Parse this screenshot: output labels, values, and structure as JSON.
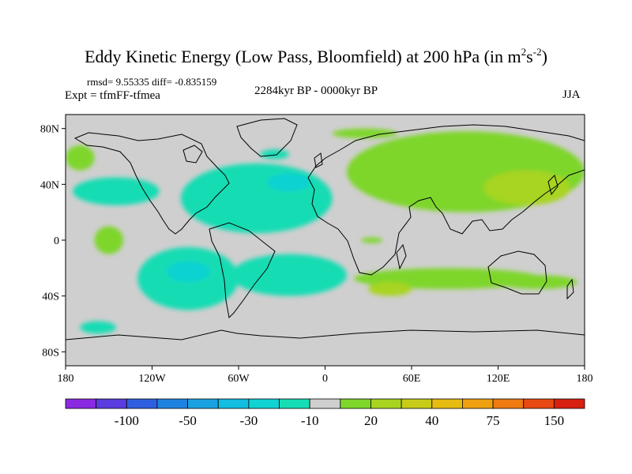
{
  "title": {
    "main": "Eddy Kinetic Energy (Low Pass, Bloomfield) at 200 hPa (in m",
    "sup1": "2",
    "mid": "s",
    "sup2": "-2",
    "end": ")"
  },
  "subtitle": {
    "stats": "rmsd= 9.55335 diff= -0.835159",
    "experiment": "Expt = tfmFF-tfmea",
    "period": "2284kyr BP - 0000kyr BP",
    "season": "JJA"
  },
  "chart_data": {
    "type": "heatmap",
    "projection": "cylindrical-equidistant",
    "variable": "Eddy Kinetic Energy difference (low pass), 200 hPa",
    "units": "m2 s-2",
    "x_range": [
      -180,
      180
    ],
    "y_range": [
      -90,
      90
    ],
    "x_ticks": [
      {
        "value": -180,
        "label": "180"
      },
      {
        "value": -120,
        "label": "120W"
      },
      {
        "value": -60,
        "label": "60W"
      },
      {
        "value": 0,
        "label": "0"
      },
      {
        "value": 60,
        "label": "60E"
      },
      {
        "value": 120,
        "label": "120E"
      },
      {
        "value": 180,
        "label": "180"
      }
    ],
    "y_ticks": [
      {
        "value": 80,
        "label": "80N"
      },
      {
        "value": 40,
        "label": "40N"
      },
      {
        "value": 0,
        "label": "0"
      },
      {
        "value": -40,
        "label": "40S"
      },
      {
        "value": -80,
        "label": "80S"
      }
    ],
    "colorbar": {
      "colors": [
        "#8a2be2",
        "#5a3ce0",
        "#2f5fe0",
        "#1e82e0",
        "#1aa2e0",
        "#11bde0",
        "#10d2d2",
        "#16dcb4",
        "#cfcfcf",
        "#7ed62a",
        "#a8d420",
        "#c8cc18",
        "#e6bc12",
        "#eea010",
        "#ee7a10",
        "#e84812",
        "#d82010"
      ],
      "labels": [
        {
          "after_bin": 2,
          "text": "-100"
        },
        {
          "after_bin": 4,
          "text": "-50"
        },
        {
          "after_bin": 6,
          "text": "-30"
        },
        {
          "after_bin": 8,
          "text": "-10"
        },
        {
          "after_bin": 10,
          "text": "20"
        },
        {
          "after_bin": 12,
          "text": "40"
        },
        {
          "after_bin": 14,
          "text": "75"
        },
        {
          "after_bin": 16,
          "text": "150"
        }
      ]
    },
    "regions": [
      {
        "name": "north-pacific-east-negative",
        "sign": "negative",
        "level": 1,
        "lon": [
          -175,
          -115
        ],
        "lat": [
          25,
          45
        ]
      },
      {
        "name": "north-atlantic-negative",
        "sign": "negative",
        "level": 1,
        "lon": [
          -100,
          5
        ],
        "lat": [
          5,
          55
        ]
      },
      {
        "name": "north-atlantic-core-negative",
        "sign": "negative",
        "level": 2,
        "lon": [
          -40,
          -10
        ],
        "lat": [
          35,
          48
        ]
      },
      {
        "name": "labrador-negative",
        "sign": "negative",
        "level": 1,
        "lon": [
          -45,
          -25
        ],
        "lat": [
          58,
          65
        ]
      },
      {
        "name": "south-pacific-negative",
        "sign": "negative",
        "level": 1,
        "lon": [
          -130,
          -60
        ],
        "lat": [
          -50,
          -5
        ]
      },
      {
        "name": "south-pacific-core-negative",
        "sign": "negative",
        "level": 2,
        "lon": [
          -110,
          -80
        ],
        "lat": [
          -30,
          -15
        ]
      },
      {
        "name": "south-atlantic-negative",
        "sign": "negative",
        "level": 1,
        "lon": [
          -65,
          15
        ],
        "lat": [
          -40,
          -10
        ]
      },
      {
        "name": "southern-ocean-negative",
        "sign": "negative",
        "level": 1,
        "lon": [
          -170,
          -145
        ],
        "lat": [
          -67,
          -58
        ]
      },
      {
        "name": "eurasia-positive",
        "sign": "positive",
        "level": 1,
        "lon": [
          15,
          180
        ],
        "lat": [
          20,
          78
        ]
      },
      {
        "name": "arctic-positive",
        "sign": "positive",
        "level": 1,
        "lon": [
          5,
          50
        ],
        "lat": [
          73,
          80
        ]
      },
      {
        "name": "east-asia-positive",
        "sign": "positive",
        "level": 2,
        "lon": [
          110,
          170
        ],
        "lat": [
          25,
          50
        ]
      },
      {
        "name": "alaska-positive",
        "sign": "positive",
        "level": 1,
        "lon": [
          -180,
          -160
        ],
        "lat": [
          50,
          68
        ]
      },
      {
        "name": "tropical-pacific-positive",
        "sign": "positive",
        "level": 1,
        "lon": [
          -160,
          -140
        ],
        "lat": [
          -10,
          10
        ]
      },
      {
        "name": "south-indian-positive",
        "sign": "positive",
        "level": 1,
        "lon": [
          20,
          150
        ],
        "lat": [
          -35,
          -20
        ]
      },
      {
        "name": "south-indian-core-positive",
        "sign": "positive",
        "level": 2,
        "lon": [
          30,
          60
        ],
        "lat": [
          -40,
          -30
        ]
      },
      {
        "name": "africa-positive",
        "sign": "positive",
        "level": 1,
        "lon": [
          25,
          40
        ],
        "lat": [
          -2,
          2
        ]
      },
      {
        "name": "australia-positive",
        "sign": "positive",
        "level": 1,
        "lon": [
          120,
          175
        ],
        "lat": [
          -35,
          -25
        ]
      }
    ]
  }
}
